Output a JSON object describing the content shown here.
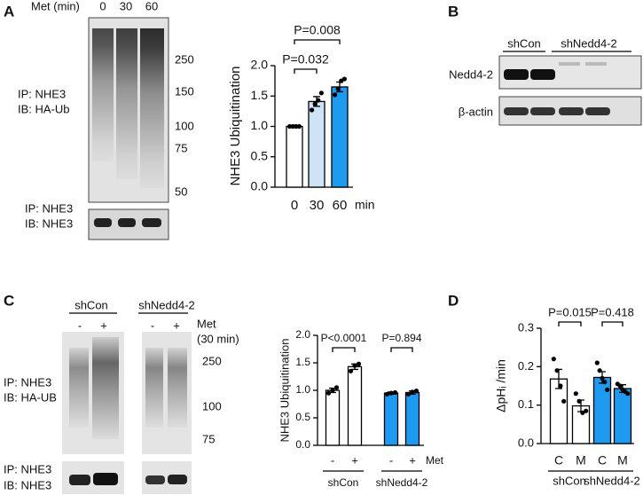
{
  "panel_labels": [
    "A",
    "B",
    "C",
    "D"
  ],
  "blots": {
    "A": {
      "treatment": "Met (min)",
      "lanes": [
        "0",
        "30",
        "60"
      ],
      "markers": [
        250,
        150,
        100,
        75,
        50
      ],
      "top_ip": "IP: NHE3",
      "top_ib": "IB: HA-Ub",
      "bottom_ip": "IP: NHE3",
      "bottom_ib": "IB: NHE3"
    },
    "B": {
      "groups": [
        "shCon",
        "shNedd4-2"
      ],
      "rows": [
        "Nedd4-2",
        "β-actin"
      ]
    },
    "C": {
      "groups": [
        "shCon",
        "shNedd4-2"
      ],
      "lanes": [
        "-",
        "+",
        "-",
        "+"
      ],
      "treatment": "Met",
      "treatment_time": "(30 min)",
      "markers": [
        250,
        100,
        75
      ],
      "top_ip": "IP: NHE3",
      "top_ib": "IB: HA-UB",
      "bottom_ip": "IP: NHE3",
      "bottom_ib": "IB: NHE3"
    }
  },
  "chart_data": [
    {
      "type": "bar",
      "ylabel": "NHE3 Ubiquitination",
      "x_label": "min",
      "categories": [
        "0",
        "30",
        "60"
      ],
      "values": [
        1.0,
        1.41,
        1.65
      ],
      "errors": [
        0,
        0.08,
        0.08
      ],
      "points": [
        [
          1.0,
          1.0,
          1.0,
          1.0
        ],
        [
          1.27,
          1.37,
          1.43,
          1.55
        ],
        [
          1.52,
          1.62,
          1.75,
          1.78
        ]
      ],
      "colors": [
        "#ffffff",
        "#cfe3f7",
        "#1e9af0"
      ],
      "ylim": [
        0,
        2
      ],
      "yticks": [
        {
          "value": 0,
          "label": "0.0"
        },
        0.5,
        {
          "value": 1,
          "label": "1.0"
        },
        1.5,
        {
          "value": 2,
          "label": "2.0"
        }
      ],
      "annotations": [
        "P=0.008",
        "P=0.032"
      ]
    },
    {
      "type": "bar",
      "ylabel": "NHE3 Ubiquitination",
      "x_label": "Met",
      "categories": [
        "-",
        "+",
        "-",
        "+"
      ],
      "groups": [
        "shCon",
        "shNedd4-2"
      ],
      "values": [
        1.0,
        1.43,
        0.95,
        0.96
      ],
      "errors": [
        0.04,
        0.05,
        0.02,
        0.03
      ],
      "points": [
        [
          0.95,
          1.0,
          1.05
        ],
        [
          1.35,
          1.45,
          1.48
        ],
        [
          0.93,
          0.95,
          0.96
        ],
        [
          0.93,
          0.97,
          0.99
        ]
      ],
      "colors": [
        "#ffffff",
        "#ffffff",
        "#1e9af0",
        "#1e9af0"
      ],
      "ylim": [
        0,
        2
      ],
      "yticks": [
        {
          "value": 0,
          "label": "0.0"
        },
        0.5,
        {
          "value": 1,
          "label": "1.0"
        },
        1.5,
        {
          "value": 2,
          "label": "2.0"
        }
      ],
      "annotations": [
        "P<0.0001",
        "P=0.894"
      ]
    },
    {
      "type": "bar",
      "ylabel": "ΔpHᵢ /min",
      "categories": [
        "C",
        "M",
        "C",
        "M"
      ],
      "groups": [
        "shCon",
        "shNedd4-2"
      ],
      "values": [
        0.168,
        0.098,
        0.172,
        0.143
      ],
      "errors": [
        0.025,
        0.015,
        0.015,
        0.01
      ],
      "points": [
        [
          0.22,
          0.19,
          0.15,
          0.11
        ],
        [
          0.13,
          0.11,
          0.08,
          0.085
        ],
        [
          0.21,
          0.19,
          0.17,
          0.16,
          0.14
        ],
        [
          0.155,
          0.15,
          0.14,
          0.135,
          0.13
        ]
      ],
      "colors": [
        "#ffffff",
        "#ffffff",
        "#1e9af0",
        "#1e9af0"
      ],
      "ylim": [
        0,
        0.3
      ],
      "yticks": [
        {
          "value": 0,
          "label": "0.0"
        },
        0.1,
        0.2,
        0.3
      ],
      "annotations": [
        "P=0.015",
        "P=0.418"
      ]
    }
  ]
}
